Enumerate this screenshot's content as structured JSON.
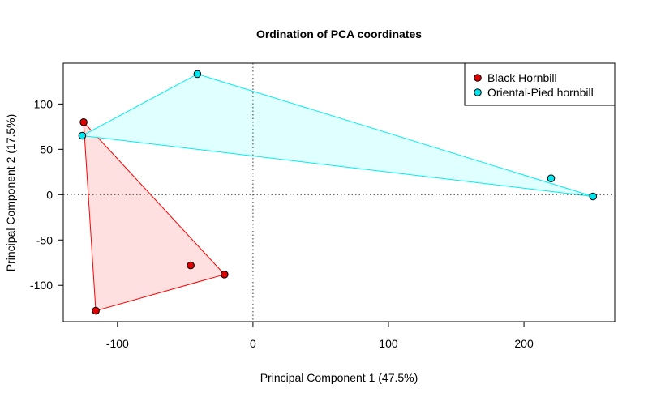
{
  "chart_data": {
    "type": "scatter",
    "title": "Ordination of PCA coordinates",
    "xlabel": "Principal Component 1 (47.5%)",
    "ylabel": "Principal Component 2 (17.5%)",
    "xlim": [
      -140,
      267
    ],
    "ylim": [
      -140,
      145
    ],
    "x_ticks": [
      -100,
      0,
      100,
      200
    ],
    "y_ticks": [
      -100,
      -50,
      0,
      50,
      100
    ],
    "x_tick_labels": [
      "-100",
      "0",
      "100",
      "200"
    ],
    "y_tick_labels": [
      "-100",
      "-50",
      "0",
      "50",
      "100"
    ],
    "reference_lines": {
      "x": 0,
      "y": 0,
      "style": "dotted"
    },
    "legend_position": "top-right",
    "series": [
      {
        "name": "Black Hornbill",
        "color": "#e00000",
        "hull_fill": "#ffe0e0",
        "hull_stroke": "#ff0000",
        "points": [
          [
            -125,
            80
          ],
          [
            -116,
            -128
          ],
          [
            -21,
            -88
          ],
          [
            -46,
            -78
          ]
        ],
        "hull": [
          [
            -125,
            80
          ],
          [
            -116,
            -128
          ],
          [
            -21,
            -88
          ]
        ]
      },
      {
        "name": "Oriental-Pied hornbill",
        "color": "#00e5ee",
        "hull_fill": "#e0ffff",
        "hull_stroke": "#00eeee",
        "points": [
          [
            -41,
            133
          ],
          [
            -126,
            65
          ],
          [
            220,
            18
          ],
          [
            251,
            -2
          ]
        ],
        "hull": [
          [
            -41,
            133
          ],
          [
            -126,
            65
          ],
          [
            251,
            -2
          ]
        ]
      }
    ]
  }
}
